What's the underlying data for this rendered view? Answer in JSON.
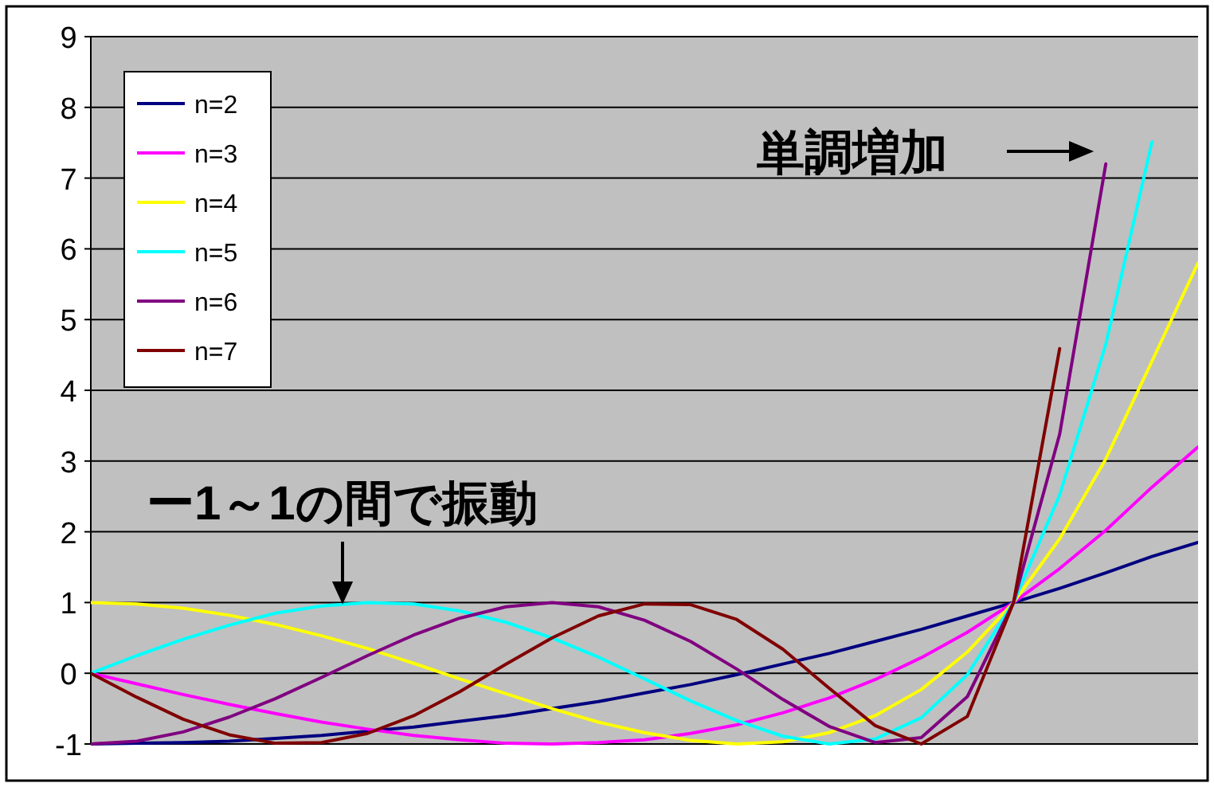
{
  "chart_data": {
    "type": "line",
    "categories": [
      null,
      null,
      null,
      null,
      null,
      null,
      null,
      null,
      null,
      null,
      null,
      null,
      null,
      null,
      null,
      null,
      null,
      null,
      null,
      null,
      null,
      null,
      null,
      null,
      null
    ],
    "ylim": [
      -1,
      9
    ],
    "yticks": [
      -1,
      0,
      1,
      2,
      3,
      4,
      5,
      6,
      7,
      8,
      9
    ],
    "grid": "y",
    "legend": "top left",
    "series": [
      {
        "name": "n=2",
        "color": "#000080",
        "values": [
          -1,
          -0.99,
          -0.98,
          -0.96,
          -0.92,
          -0.88,
          -0.82,
          -0.76,
          -0.68,
          -0.6,
          -0.5,
          -0.4,
          -0.28,
          -0.16,
          -0.02,
          0.13,
          0.28,
          0.45,
          0.62,
          0.81,
          1,
          1.2,
          1.42,
          1.65,
          1.85
        ]
      },
      {
        "name": "n=3",
        "color": "#ff00ff",
        "values": [
          0,
          -0.15,
          -0.3,
          -0.44,
          -0.57,
          -0.69,
          -0.79,
          -0.88,
          -0.94,
          -0.99,
          -1,
          -0.98,
          -0.94,
          -0.85,
          -0.73,
          -0.56,
          -0.35,
          -0.09,
          0.22,
          0.58,
          1,
          1.48,
          2.02,
          2.63,
          3.2
        ]
      },
      {
        "name": "n=4",
        "color": "#ffff00",
        "values": [
          1,
          0.98,
          0.92,
          0.82,
          0.69,
          0.53,
          0.35,
          0.14,
          -0.08,
          -0.29,
          -0.5,
          -0.69,
          -0.84,
          -0.95,
          -1,
          -0.97,
          -0.84,
          -0.6,
          -0.23,
          0.3,
          1,
          1.9,
          3.03,
          4.41,
          5.8
        ]
      },
      {
        "name": "n=5",
        "color": "#00ffff",
        "values": [
          0,
          0.25,
          0.48,
          0.68,
          0.85,
          0.95,
          1,
          0.98,
          0.88,
          0.72,
          0.5,
          0.23,
          -0.08,
          -0.39,
          -0.67,
          -0.89,
          -1,
          -0.93,
          -0.63,
          -0.02,
          1,
          2.52,
          4.65,
          7.51,
          null
        ]
      },
      {
        "name": "n=6",
        "color": "#800080",
        "values": [
          -1,
          -0.96,
          -0.83,
          -0.62,
          -0.36,
          -0.06,
          0.25,
          0.54,
          0.78,
          0.94,
          1,
          0.94,
          0.75,
          0.45,
          0.06,
          -0.37,
          -0.75,
          -0.98,
          -0.91,
          -0.33,
          1,
          3.38,
          7.2,
          null,
          null
        ]
      },
      {
        "name": "n=7",
        "color": "#800000",
        "values": [
          0,
          -0.34,
          -0.65,
          -0.87,
          -0.99,
          -0.98,
          -0.85,
          -0.6,
          -0.26,
          0.13,
          0.5,
          0.81,
          0.98,
          0.97,
          0.76,
          0.34,
          -0.21,
          -0.74,
          -1,
          -0.61,
          1,
          4.59,
          null,
          null,
          null
        ]
      }
    ],
    "annotations": [
      "単調増加",
      "ー1～1の間で振動"
    ]
  }
}
